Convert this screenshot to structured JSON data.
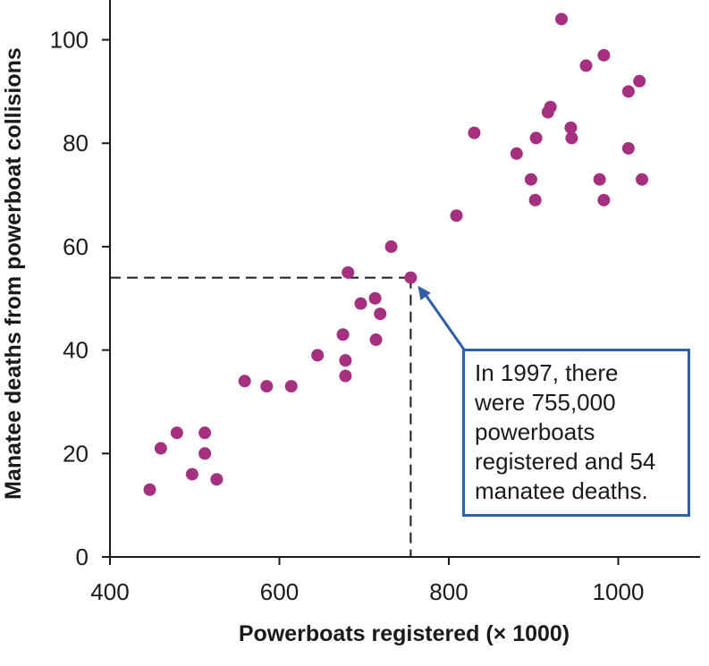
{
  "chart_data": {
    "type": "scatter",
    "xlabel": "Powerboats registered (× 1000)",
    "ylabel": "Manatee deaths from powerboat collisions",
    "xlim": [
      400,
      1050
    ],
    "ylim": [
      0,
      108
    ],
    "xticks": [
      "400",
      "600",
      "800",
      "1000"
    ],
    "yticks": [
      "0",
      "20",
      "40",
      "60",
      "80",
      "100"
    ],
    "grid": false,
    "point_color": "#a4307f",
    "points": [
      {
        "x": 447,
        "y": 13
      },
      {
        "x": 460,
        "y": 21
      },
      {
        "x": 479,
        "y": 24
      },
      {
        "x": 497,
        "y": 16
      },
      {
        "x": 512,
        "y": 24
      },
      {
        "x": 512,
        "y": 20
      },
      {
        "x": 526,
        "y": 15
      },
      {
        "x": 559,
        "y": 34
      },
      {
        "x": 585,
        "y": 33
      },
      {
        "x": 614,
        "y": 33
      },
      {
        "x": 645,
        "y": 39
      },
      {
        "x": 675,
        "y": 43
      },
      {
        "x": 678,
        "y": 38
      },
      {
        "x": 678,
        "y": 35
      },
      {
        "x": 681,
        "y": 55
      },
      {
        "x": 696,
        "y": 49
      },
      {
        "x": 713,
        "y": 50
      },
      {
        "x": 714,
        "y": 42
      },
      {
        "x": 719,
        "y": 47
      },
      {
        "x": 732,
        "y": 60
      },
      {
        "x": 755,
        "y": 54
      },
      {
        "x": 809,
        "y": 66
      },
      {
        "x": 830,
        "y": 82
      },
      {
        "x": 880,
        "y": 78
      },
      {
        "x": 897,
        "y": 73
      },
      {
        "x": 902,
        "y": 69
      },
      {
        "x": 903,
        "y": 81
      },
      {
        "x": 917,
        "y": 86
      },
      {
        "x": 920,
        "y": 87
      },
      {
        "x": 933,
        "y": 104
      },
      {
        "x": 944,
        "y": 83
      },
      {
        "x": 945,
        "y": 81
      },
      {
        "x": 962,
        "y": 95
      },
      {
        "x": 978,
        "y": 73
      },
      {
        "x": 983,
        "y": 97
      },
      {
        "x": 983,
        "y": 69
      },
      {
        "x": 1012,
        "y": 90
      },
      {
        "x": 1012,
        "y": 79
      },
      {
        "x": 1025,
        "y": 92
      },
      {
        "x": 1028,
        "y": 73
      }
    ],
    "reference_point": {
      "x": 755,
      "y": 54
    },
    "annotation": {
      "lines": [
        "In 1997, there",
        "were 755,000",
        "powerboats",
        "registered and 54",
        "manatee deaths."
      ],
      "border_color": "#2e5fa8"
    }
  }
}
